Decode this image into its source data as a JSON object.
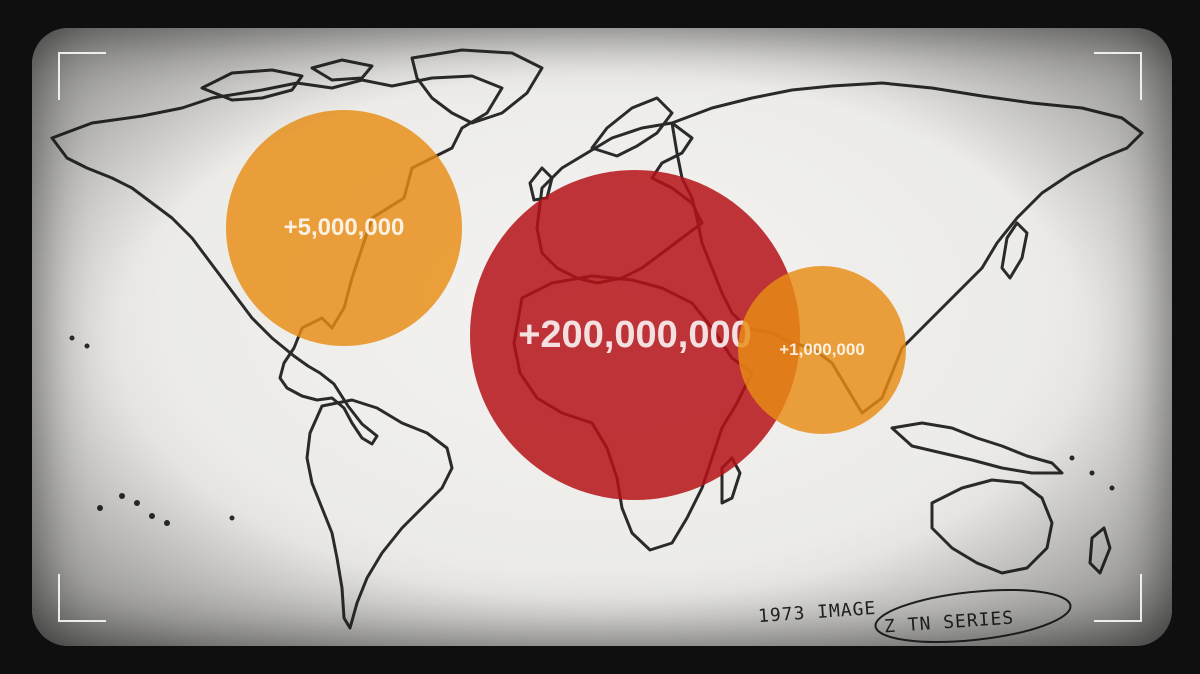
{
  "markers": [
    {
      "id": "north-america",
      "label": "+5,000,000",
      "color": "#e88c14"
    },
    {
      "id": "africa-europe",
      "label": "+200,000,000",
      "color": "#b41216"
    },
    {
      "id": "south-asia",
      "label": "+1,000,000",
      "color": "#e88c14"
    }
  ],
  "annotation": {
    "line1": "1973 IMAGE",
    "line2": "Z TN SERIES"
  }
}
